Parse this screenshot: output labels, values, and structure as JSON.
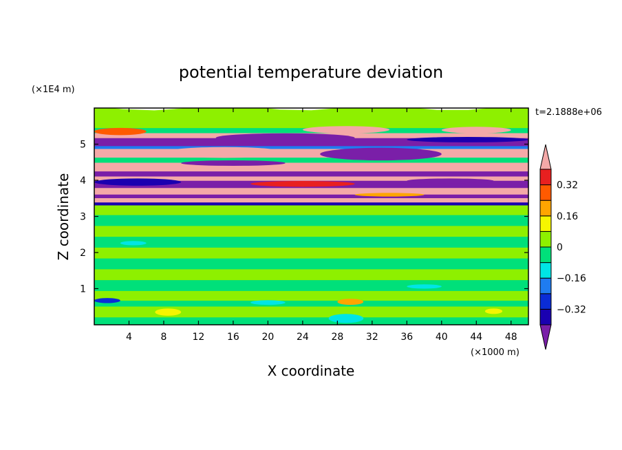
{
  "chart_data": {
    "type": "heatmap",
    "title": "potential temperature deviation",
    "time_label": "t=2.1888e+06",
    "xlabel": "X coordinate",
    "ylabel": "Z coordinate",
    "x_unit": "(×1000 m)",
    "y_unit": "(×1E4 m)",
    "xlim": [
      0,
      50
    ],
    "ylim": [
      0,
      6
    ],
    "x_ticks": [
      4,
      8,
      12,
      16,
      20,
      24,
      28,
      32,
      36,
      40,
      44,
      48
    ],
    "x_tick_labels": [
      "4",
      "8",
      "12",
      "16",
      "20",
      "24",
      "28",
      "32",
      "36",
      "40",
      "44",
      "48"
    ],
    "y_ticks": [
      1,
      2,
      3,
      4,
      5
    ],
    "y_tick_labels": [
      "1",
      "2",
      "3",
      "4",
      "5"
    ],
    "colorbar": {
      "levels": [
        -0.4,
        -0.32,
        -0.24,
        -0.16,
        -0.08,
        0,
        0.08,
        0.16,
        0.24,
        0.32,
        0.4
      ],
      "colors": [
        "#7a1fa8",
        "#1a00b0",
        "#0a2cd6",
        "#1f7cf0",
        "#00e5e5",
        "#00e07a",
        "#8ef000",
        "#f5f500",
        "#ffa500",
        "#ff5a00",
        "#e82020",
        "#f4a9a8"
      ],
      "labels": [
        {
          "value": 0.32,
          "text": "0.32"
        },
        {
          "value": 0.16,
          "text": "0.16"
        },
        {
          "value": 0,
          "text": "0"
        },
        {
          "value": -0.16,
          "text": "−0.16"
        },
        {
          "value": -0.32,
          "text": "−0.32"
        }
      ]
    },
    "bands": [
      {
        "z": [
          0.0,
          0.12
        ],
        "color": "#8ef000"
      },
      {
        "z": [
          0.12,
          0.32
        ],
        "color": "#00e07a"
      },
      {
        "z": [
          0.32,
          0.62
        ],
        "color": "#8ef000"
      },
      {
        "z": [
          0.62,
          0.78
        ],
        "color": "#00e07a"
      },
      {
        "z": [
          0.78,
          1.05
        ],
        "color": "#8ef000"
      },
      {
        "z": [
          1.05,
          1.35
        ],
        "color": "#00e07a"
      },
      {
        "z": [
          1.35,
          1.65
        ],
        "color": "#8ef000"
      },
      {
        "z": [
          1.65,
          1.95
        ],
        "color": "#00e07a"
      },
      {
        "z": [
          1.95,
          2.25
        ],
        "color": "#8ef000"
      },
      {
        "z": [
          2.25,
          2.55
        ],
        "color": "#00e07a"
      },
      {
        "z": [
          2.55,
          2.85
        ],
        "color": "#8ef000"
      },
      {
        "z": [
          2.85,
          3.15
        ],
        "color": "#00e07a"
      },
      {
        "z": [
          3.15,
          3.42
        ],
        "color": "#8ef000"
      },
      {
        "z": [
          3.42,
          3.5
        ],
        "color": "#1a00b0"
      },
      {
        "z": [
          3.5,
          3.62
        ],
        "color": "#f4a9a8"
      },
      {
        "z": [
          3.62,
          3.72
        ],
        "color": "#7a1fa8"
      },
      {
        "z": [
          3.72,
          3.9
        ],
        "color": "#f4a9a8"
      },
      {
        "z": [
          3.9,
          4.1
        ],
        "color": "#7a1fa8"
      },
      {
        "z": [
          4.1,
          4.22
        ],
        "color": "#f4a9a8"
      },
      {
        "z": [
          4.22,
          4.36
        ],
        "color": "#7a1fa8"
      },
      {
        "z": [
          4.36,
          4.6
        ],
        "color": "#f4a9a8"
      },
      {
        "z": [
          4.6,
          4.74
        ],
        "color": "#00e07a"
      },
      {
        "z": [
          4.74,
          4.98
        ],
        "color": "#f4a9a8"
      },
      {
        "z": [
          4.98,
          5.06
        ],
        "color": "#1f7cf0"
      },
      {
        "z": [
          5.06,
          5.28
        ],
        "color": "#7a1fa8"
      },
      {
        "z": [
          5.28,
          5.42
        ],
        "color": "#f4a9a8"
      },
      {
        "z": [
          5.42,
          5.56
        ],
        "color": "#00e07a"
      },
      {
        "z": [
          5.56,
          6.0
        ],
        "color": "#8ef000"
      }
    ],
    "features": [
      {
        "x": [
          8,
          22
        ],
        "z": [
          4.62,
          4.92
        ],
        "color": "#f4a9a8"
      },
      {
        "x": [
          26,
          40
        ],
        "z": [
          4.55,
          4.9
        ],
        "color": "#7a1fa8"
      },
      {
        "x": [
          14,
          30
        ],
        "z": [
          5.05,
          5.3
        ],
        "color": "#7a1fa8"
      },
      {
        "x": [
          36,
          50
        ],
        "z": [
          5.05,
          5.2
        ],
        "color": "#1a00b0"
      },
      {
        "x": [
          0,
          6
        ],
        "z": [
          5.25,
          5.45
        ],
        "color": "#ff5a00"
      },
      {
        "x": [
          24,
          34
        ],
        "z": [
          5.3,
          5.5
        ],
        "color": "#f4a9a8"
      },
      {
        "x": [
          40,
          48
        ],
        "z": [
          5.3,
          5.48
        ],
        "color": "#f4a9a8"
      },
      {
        "x": [
          10,
          22
        ],
        "z": [
          4.4,
          4.55
        ],
        "color": "#7a1fa8"
      },
      {
        "x": [
          0,
          10
        ],
        "z": [
          3.85,
          4.05
        ],
        "color": "#1a00b0"
      },
      {
        "x": [
          18,
          30
        ],
        "z": [
          3.82,
          3.98
        ],
        "color": "#e82020"
      },
      {
        "x": [
          36,
          46
        ],
        "z": [
          3.92,
          4.05
        ],
        "color": "#7a1fa8"
      },
      {
        "x": [
          30,
          38
        ],
        "z": [
          3.55,
          3.65
        ],
        "color": "#ffa500"
      },
      {
        "x": [
          0,
          3
        ],
        "z": [
          0.6,
          0.74
        ],
        "color": "#0a2cd6"
      },
      {
        "x": [
          7,
          10
        ],
        "z": [
          0.25,
          0.45
        ],
        "color": "#f5f500"
      },
      {
        "x": [
          28,
          31
        ],
        "z": [
          0.55,
          0.72
        ],
        "color": "#ffa500"
      },
      {
        "x": [
          45,
          47
        ],
        "z": [
          0.3,
          0.45
        ],
        "color": "#f5f500"
      },
      {
        "x": [
          27,
          31
        ],
        "z": [
          0.05,
          0.3
        ],
        "color": "#00e5e5"
      },
      {
        "x": [
          18,
          22
        ],
        "z": [
          0.55,
          0.68
        ],
        "color": "#00e5e5"
      },
      {
        "x": [
          36,
          40
        ],
        "z": [
          1.0,
          1.12
        ],
        "color": "#00e5e5"
      },
      {
        "x": [
          3,
          6
        ],
        "z": [
          2.2,
          2.32
        ],
        "color": "#00e5e5"
      }
    ]
  }
}
